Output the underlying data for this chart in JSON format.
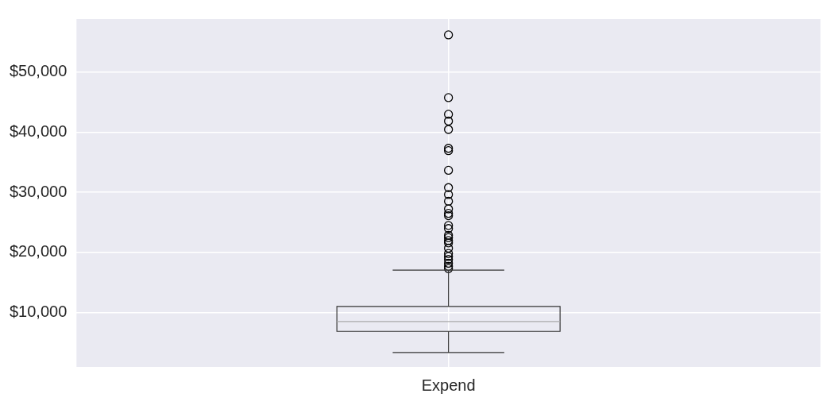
{
  "chart_data": {
    "type": "box",
    "categories": [
      "Expend"
    ],
    "color": "#333333",
    "grid": true,
    "ylim": [
      940,
      58800
    ],
    "yticks": [
      {
        "value": 10000,
        "label": "$10,000"
      },
      {
        "value": 20000,
        "label": "$20,000"
      },
      {
        "value": 30000,
        "label": "$30,000"
      },
      {
        "value": 40000,
        "label": "$40,000"
      },
      {
        "value": 50000,
        "label": "$50,000"
      }
    ],
    "boxes": [
      {
        "low": 3330,
        "q1": 6850,
        "median": 8490,
        "q3": 11000,
        "high": 17040,
        "outliers": [
          56170,
          45730,
          42960,
          41830,
          40440,
          37300,
          36920,
          33650,
          30760,
          29620,
          28490,
          27230,
          26480,
          26100,
          24470,
          23960,
          22830,
          22450,
          21950,
          21570,
          20690,
          19810,
          19310,
          18810,
          18180,
          17670,
          17300
        ]
      }
    ]
  }
}
